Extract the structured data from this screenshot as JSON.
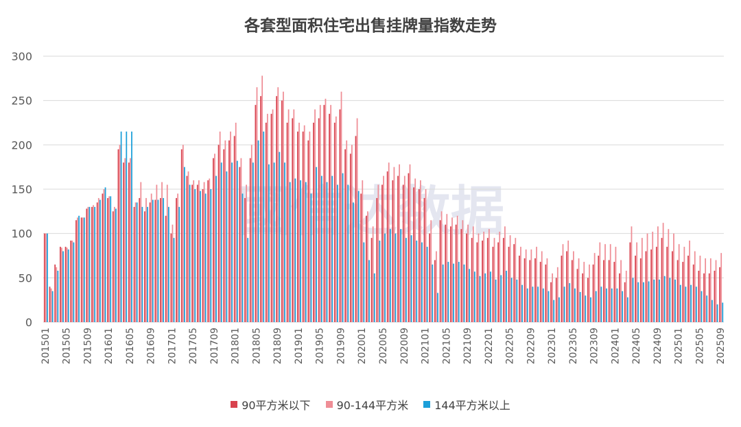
{
  "chart_data": {
    "type": "bar",
    "title": "各套型面积住宅出售挂牌量指数走势",
    "xlabel": "",
    "ylabel": "",
    "ylim": [
      0,
      300
    ],
    "yticks": [
      0,
      50,
      100,
      150,
      200,
      250,
      300
    ],
    "grid": true,
    "legend_position": "bottom",
    "watermark": "國信达数据",
    "tick_every": 4,
    "start_year": 2015,
    "start_month": 1,
    "series": [
      {
        "name": "90平方米以下",
        "color": "#d8424e",
        "values": [
          100,
          40,
          65,
          85,
          85,
          92,
          115,
          118,
          128,
          130,
          135,
          145,
          140,
          125,
          195,
          180,
          180,
          130,
          140,
          125,
          135,
          138,
          140,
          120,
          100,
          140,
          195,
          165,
          155,
          155,
          150,
          160,
          185,
          200,
          195,
          205,
          210,
          175,
          140,
          185,
          245,
          255,
          225,
          235,
          255,
          250,
          225,
          230,
          215,
          215,
          205,
          225,
          230,
          245,
          235,
          225,
          240,
          195,
          190,
          210,
          145,
          120,
          95,
          140,
          155,
          170,
          160,
          165,
          155,
          168,
          152,
          150,
          140,
          100,
          70,
          115,
          110,
          108,
          110,
          105,
          100,
          95,
          90,
          92,
          95,
          85,
          90,
          95,
          85,
          88,
          75,
          72,
          70,
          72,
          68,
          65,
          45,
          50,
          75,
          80,
          70,
          60,
          55,
          50,
          65,
          75,
          70,
          70,
          68,
          55,
          45,
          90,
          75,
          72,
          80,
          82,
          85,
          95,
          85,
          80,
          70,
          68,
          75,
          65,
          58,
          55,
          55,
          58,
          62
        ]
      },
      {
        "name": "90-144平方米",
        "color": "#ef8e96",
        "values": [
          100,
          38,
          62,
          84,
          84,
          92,
          118,
          118,
          130,
          132,
          140,
          150,
          142,
          130,
          200,
          185,
          185,
          135,
          158,
          140,
          145,
          155,
          158,
          155,
          110,
          145,
          200,
          170,
          160,
          160,
          158,
          162,
          190,
          215,
          205,
          215,
          225,
          185,
          155,
          200,
          265,
          278,
          235,
          240,
          265,
          260,
          240,
          240,
          225,
          222,
          215,
          240,
          245,
          252,
          245,
          232,
          260,
          205,
          200,
          230,
          160,
          125,
          108,
          155,
          165,
          180,
          175,
          178,
          165,
          178,
          162,
          160,
          150,
          115,
          80,
          125,
          122,
          118,
          120,
          115,
          110,
          108,
          100,
          102,
          105,
          95,
          102,
          108,
          98,
          95,
          85,
          82,
          82,
          85,
          80,
          72,
          55,
          62,
          88,
          92,
          80,
          72,
          68,
          65,
          78,
          90,
          88,
          88,
          85,
          70,
          58,
          108,
          90,
          95,
          100,
          102,
          108,
          112,
          105,
          100,
          88,
          85,
          92,
          80,
          75,
          72,
          72,
          70,
          78
        ]
      },
      {
        "name": "144平方米以上",
        "color": "#1c9fd9",
        "values": [
          100,
          35,
          58,
          80,
          82,
          90,
          120,
          118,
          130,
          130,
          138,
          152,
          142,
          128,
          215,
          215,
          215,
          135,
          130,
          130,
          138,
          138,
          140,
          130,
          95,
          130,
          175,
          155,
          150,
          148,
          145,
          150,
          165,
          180,
          170,
          180,
          182,
          145,
          95,
          180,
          205,
          215,
          178,
          180,
          192,
          180,
          158,
          162,
          160,
          158,
          145,
          175,
          165,
          158,
          165,
          155,
          168,
          155,
          135,
          148,
          90,
          70,
          55,
          92,
          100,
          105,
          100,
          105,
          95,
          98,
          92,
          90,
          85,
          65,
          33,
          65,
          68,
          66,
          68,
          65,
          60,
          57,
          52,
          55,
          57,
          48,
          53,
          58,
          50,
          48,
          42,
          38,
          40,
          40,
          38,
          35,
          25,
          28,
          40,
          44,
          38,
          34,
          30,
          28,
          35,
          40,
          38,
          38,
          38,
          35,
          28,
          50,
          45,
          45,
          46,
          48,
          48,
          52,
          50,
          48,
          42,
          40,
          42,
          40,
          35,
          30,
          25,
          20,
          22
        ]
      }
    ]
  }
}
